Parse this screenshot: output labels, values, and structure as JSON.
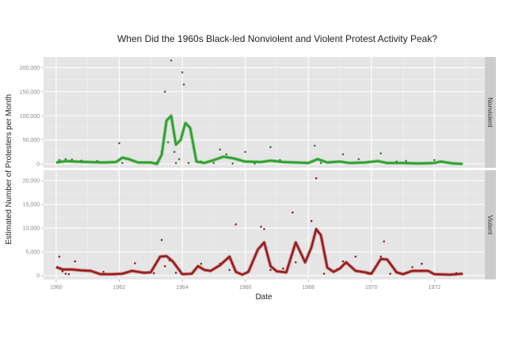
{
  "chart_data": {
    "type": "line",
    "title": "When Did the 1960s Black-led Nonviolent and Violent Protest Activity Peak?",
    "xlabel": "Date",
    "ylabel": "Estimated Number of Protesters per Month",
    "x_ticks": [
      "1960",
      "1962",
      "1964",
      "1966",
      "1968",
      "1970",
      "1972"
    ],
    "xlim": [
      1959.6,
      1973.6
    ],
    "grid": true,
    "legend": "none (facet strips on right)",
    "panels": [
      {
        "name": "Nonviolent",
        "color": "#2ca02c",
        "point_color": "#3a7a3a",
        "ylim": [
          -8000,
          222000
        ],
        "y_ticks": [
          0,
          50000,
          100000,
          150000,
          200000
        ],
        "y_tick_labels": [
          "0",
          "50,000",
          "100,000",
          "150,000",
          "200,000"
        ],
        "smooth_line": [
          [
            1960.0,
            3000
          ],
          [
            1960.3,
            6000
          ],
          [
            1960.6,
            5000
          ],
          [
            1961.0,
            4000
          ],
          [
            1961.5,
            3000
          ],
          [
            1961.9,
            4000
          ],
          [
            1962.1,
            13000
          ],
          [
            1962.3,
            10000
          ],
          [
            1962.6,
            3000
          ],
          [
            1963.0,
            3000
          ],
          [
            1963.2,
            0
          ],
          [
            1963.35,
            20000
          ],
          [
            1963.5,
            90000
          ],
          [
            1963.65,
            100000
          ],
          [
            1963.8,
            40000
          ],
          [
            1963.95,
            50000
          ],
          [
            1964.1,
            85000
          ],
          [
            1964.25,
            75000
          ],
          [
            1964.45,
            5000
          ],
          [
            1964.7,
            2000
          ],
          [
            1965.0,
            8000
          ],
          [
            1965.3,
            15000
          ],
          [
            1965.6,
            12000
          ],
          [
            1966.0,
            5000
          ],
          [
            1966.5,
            4000
          ],
          [
            1966.8,
            7000
          ],
          [
            1967.2,
            4000
          ],
          [
            1967.6,
            3000
          ],
          [
            1968.0,
            2000
          ],
          [
            1968.3,
            10000
          ],
          [
            1968.6,
            3000
          ],
          [
            1969.0,
            5000
          ],
          [
            1969.3,
            2000
          ],
          [
            1969.8,
            3000
          ],
          [
            1970.2,
            6000
          ],
          [
            1970.5,
            2000
          ],
          [
            1971.0,
            2000
          ],
          [
            1971.5,
            1000
          ],
          [
            1972.0,
            2000
          ],
          [
            1972.2,
            5000
          ],
          [
            1972.6,
            1000
          ],
          [
            1972.9,
            0
          ]
        ],
        "points": [
          [
            1960.1,
            8000
          ],
          [
            1960.3,
            10000
          ],
          [
            1960.5,
            9000
          ],
          [
            1960.8,
            7000
          ],
          [
            1961.3,
            6000
          ],
          [
            1962.0,
            43000
          ],
          [
            1962.1,
            2000
          ],
          [
            1962.7,
            3000
          ],
          [
            1963.2,
            3000
          ],
          [
            1963.35,
            25000
          ],
          [
            1963.45,
            150000
          ],
          [
            1963.55,
            45000
          ],
          [
            1963.65,
            215000
          ],
          [
            1963.75,
            25000
          ],
          [
            1963.8,
            2000
          ],
          [
            1963.9,
            10000
          ],
          [
            1964.0,
            190000
          ],
          [
            1964.05,
            165000
          ],
          [
            1964.2,
            2000
          ],
          [
            1964.6,
            5000
          ],
          [
            1965.0,
            2000
          ],
          [
            1965.2,
            30000
          ],
          [
            1965.4,
            20000
          ],
          [
            1965.6,
            1000
          ],
          [
            1966.0,
            25000
          ],
          [
            1966.3,
            1000
          ],
          [
            1966.8,
            35000
          ],
          [
            1967.1,
            8000
          ],
          [
            1968.2,
            38000
          ],
          [
            1968.4,
            2000
          ],
          [
            1969.1,
            20000
          ],
          [
            1969.6,
            10000
          ],
          [
            1970.3,
            22000
          ],
          [
            1970.8,
            5000
          ],
          [
            1971.1,
            6000
          ],
          [
            1972.0,
            8000
          ]
        ]
      },
      {
        "name": "Violent",
        "color": "#9b1c1c",
        "point_color": "#8b2a2a",
        "ylim": [
          -800,
          22200
        ],
        "y_ticks": [
          0,
          5000,
          10000,
          15000,
          20000
        ],
        "y_tick_labels": [
          "0",
          "5,000",
          "10,000",
          "15,000",
          "20,000"
        ],
        "smooth_line": [
          [
            1960.0,
            1800
          ],
          [
            1960.2,
            1300
          ],
          [
            1960.5,
            1300
          ],
          [
            1960.8,
            1100
          ],
          [
            1961.1,
            1000
          ],
          [
            1961.4,
            300
          ],
          [
            1961.8,
            300
          ],
          [
            1962.1,
            400
          ],
          [
            1962.4,
            1000
          ],
          [
            1962.8,
            600
          ],
          [
            1963.0,
            700
          ],
          [
            1963.3,
            4000
          ],
          [
            1963.5,
            4100
          ],
          [
            1963.7,
            3000
          ],
          [
            1964.0,
            300
          ],
          [
            1964.3,
            400
          ],
          [
            1964.5,
            2000
          ],
          [
            1964.7,
            1200
          ],
          [
            1964.9,
            1000
          ],
          [
            1965.2,
            2200
          ],
          [
            1965.5,
            4000
          ],
          [
            1965.7,
            800
          ],
          [
            1965.9,
            200
          ],
          [
            1966.1,
            800
          ],
          [
            1966.4,
            5500
          ],
          [
            1966.6,
            7000
          ],
          [
            1966.8,
            2000
          ],
          [
            1967.0,
            900
          ],
          [
            1967.3,
            700
          ],
          [
            1967.6,
            7000
          ],
          [
            1967.9,
            2800
          ],
          [
            1968.1,
            6000
          ],
          [
            1968.25,
            9800
          ],
          [
            1968.4,
            8500
          ],
          [
            1968.6,
            1700
          ],
          [
            1968.8,
            800
          ],
          [
            1969.0,
            1500
          ],
          [
            1969.2,
            2800
          ],
          [
            1969.5,
            1000
          ],
          [
            1969.8,
            700
          ],
          [
            1970.0,
            400
          ],
          [
            1970.3,
            3500
          ],
          [
            1970.5,
            3400
          ],
          [
            1970.8,
            700
          ],
          [
            1971.0,
            300
          ],
          [
            1971.3,
            1000
          ],
          [
            1971.8,
            1000
          ],
          [
            1972.0,
            300
          ],
          [
            1972.5,
            200
          ],
          [
            1972.9,
            400
          ]
        ],
        "points": [
          [
            1960.1,
            4000
          ],
          [
            1960.2,
            900
          ],
          [
            1960.3,
            400
          ],
          [
            1960.4,
            300
          ],
          [
            1960.6,
            3000
          ],
          [
            1961.5,
            800
          ],
          [
            1962.5,
            2600
          ],
          [
            1963.1,
            500
          ],
          [
            1963.35,
            7500
          ],
          [
            1963.45,
            2000
          ],
          [
            1963.6,
            3200
          ],
          [
            1963.8,
            600
          ],
          [
            1964.6,
            2500
          ],
          [
            1965.2,
            2500
          ],
          [
            1965.7,
            10800
          ],
          [
            1965.5,
            1200
          ],
          [
            1966.1,
            1000
          ],
          [
            1966.5,
            10300
          ],
          [
            1966.6,
            9800
          ],
          [
            1966.8,
            1200
          ],
          [
            1967.2,
            1500
          ],
          [
            1967.5,
            13300
          ],
          [
            1967.6,
            2800
          ],
          [
            1968.1,
            11500
          ],
          [
            1968.25,
            20500
          ],
          [
            1968.5,
            400
          ],
          [
            1968.9,
            1200
          ],
          [
            1969.1,
            3000
          ],
          [
            1969.5,
            4000
          ],
          [
            1969.9,
            400
          ],
          [
            1970.3,
            4000
          ],
          [
            1970.4,
            7200
          ],
          [
            1970.6,
            400
          ],
          [
            1971.3,
            1800
          ],
          [
            1971.6,
            2500
          ],
          [
            1972.7,
            500
          ]
        ]
      }
    ]
  },
  "strips": {
    "top": "Nonviolent",
    "bottom": "Violent"
  },
  "axes": {
    "x_title": "Date",
    "y_title": "Estimated Number of Protesters per Month"
  }
}
